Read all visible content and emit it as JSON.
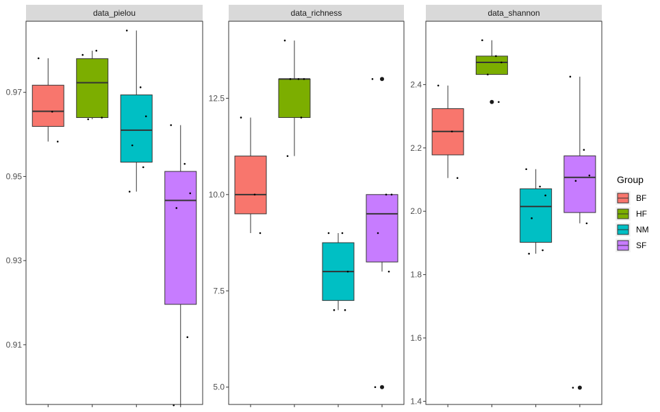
{
  "chart_data": {
    "type": "boxplot",
    "layout": "faceted",
    "legend": {
      "title": "Group",
      "position": "right",
      "entries": [
        {
          "label": "BF",
          "color": "#F8766D"
        },
        {
          "label": "HF",
          "color": "#7CAE00"
        },
        {
          "label": "NM",
          "color": "#00BFC4"
        },
        {
          "label": "SF",
          "color": "#C77CFF"
        }
      ]
    },
    "groups": [
      "BF",
      "HF",
      "NM",
      "SF"
    ],
    "facets": [
      {
        "name": "data_pielou",
        "ylim": [
          0.8958,
          0.9869
        ],
        "ticks": [
          0.91,
          0.93,
          0.95,
          0.97
        ],
        "tick_labels": [
          "0.91",
          "0.93",
          "0.95",
          "0.97"
        ],
        "boxes": [
          {
            "group": "BF",
            "whisker_low": 0.9583,
            "q1": 0.9619,
            "median": 0.9655,
            "q3": 0.9717,
            "whisker_high": 0.9781,
            "outliers": [],
            "points": [
              0.9781,
              0.9654,
              0.9583
            ]
          },
          {
            "group": "HF",
            "whisker_low": 0.9636,
            "q1": 0.964,
            "median": 0.9723,
            "q3": 0.978,
            "whisker_high": 0.9799,
            "outliers": [],
            "points": [
              0.9789,
              0.9799,
              0.964,
              0.9636
            ]
          },
          {
            "group": "NM",
            "whisker_low": 0.9464,
            "q1": 0.9534,
            "median": 0.961,
            "q3": 0.9694,
            "whisker_high": 0.9847,
            "outliers": [],
            "points": [
              0.9847,
              0.9712,
              0.9643,
              0.9574,
              0.9522,
              0.9464
            ]
          },
          {
            "group": "SF",
            "whisker_low": 0.8956,
            "q1": 0.9196,
            "median": 0.9443,
            "q3": 0.9512,
            "whisker_high": 0.9622,
            "outliers": [],
            "points": [
              0.9622,
              0.953,
              0.946,
              0.9425,
              0.9118,
              0.8956
            ]
          }
        ]
      },
      {
        "name": "data_richness",
        "ylim": [
          4.55,
          14.5
        ],
        "ticks": [
          5.0,
          7.5,
          10.0,
          12.5
        ],
        "tick_labels": [
          "5.0",
          "7.5",
          "10.0",
          "12.5"
        ],
        "boxes": [
          {
            "group": "BF",
            "whisker_low": 9,
            "q1": 9.5,
            "median": 10,
            "q3": 11,
            "whisker_high": 12,
            "outliers": [],
            "points": [
              12,
              10,
              9
            ]
          },
          {
            "group": "HF",
            "whisker_low": 11,
            "q1": 12,
            "median": 13,
            "q3": 13,
            "whisker_high": 14,
            "outliers": [],
            "points": [
              14,
              13,
              13,
              13,
              12,
              11
            ]
          },
          {
            "group": "NM",
            "whisker_low": 7,
            "q1": 7.25,
            "median": 8,
            "q3": 8.75,
            "whisker_high": 9,
            "outliers": [],
            "points": [
              9,
              9,
              8,
              7,
              7
            ]
          },
          {
            "group": "SF",
            "whisker_low": 8,
            "q1": 8.25,
            "median": 9.5,
            "q3": 10,
            "whisker_high": 10,
            "outliers": [
              13,
              5
            ],
            "points": [
              13,
              10,
              10,
              9,
              8,
              5
            ]
          }
        ]
      },
      {
        "name": "data_shannon",
        "ylim": [
          1.39,
          2.6
        ],
        "ticks": [
          1.4,
          1.6,
          1.8,
          2.0,
          2.2,
          2.4
        ],
        "tick_labels": [
          "1.4",
          "1.6",
          "1.8",
          "2.0",
          "2.2",
          "2.4"
        ],
        "boxes": [
          {
            "group": "BF",
            "whisker_low": 2.105,
            "q1": 2.178,
            "median": 2.252,
            "q3": 2.324,
            "whisker_high": 2.397,
            "outliers": [],
            "points": [
              2.397,
              2.252,
              2.105
            ]
          },
          {
            "group": "HF",
            "whisker_low": 2.432,
            "q1": 2.432,
            "median": 2.47,
            "q3": 2.49,
            "whisker_high": 2.54,
            "outliers": [
              2.345
            ],
            "points": [
              2.54,
              2.49,
              2.47,
              2.432,
              2.345
            ]
          },
          {
            "group": "NM",
            "whisker_low": 1.866,
            "q1": 1.902,
            "median": 2.015,
            "q3": 2.071,
            "whisker_high": 2.133,
            "outliers": [],
            "points": [
              2.133,
              2.078,
              2.05,
              1.978,
              1.877,
              1.866
            ]
          },
          {
            "group": "SF",
            "whisker_low": 1.962,
            "q1": 1.996,
            "median": 2.107,
            "q3": 2.175,
            "whisker_high": 2.425,
            "outliers": [
              1.443
            ],
            "points": [
              2.425,
              2.194,
              2.113,
              2.096,
              1.962,
              1.443
            ]
          }
        ]
      }
    ]
  }
}
